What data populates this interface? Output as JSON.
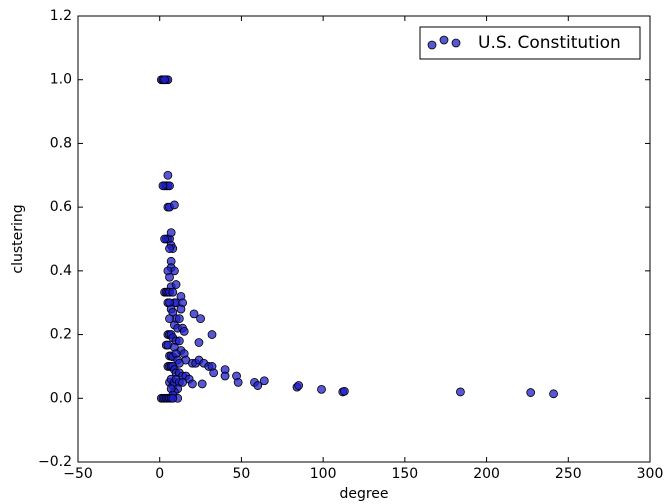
{
  "chart_data": {
    "type": "scatter",
    "xlabel": "degree",
    "ylabel": "clustering",
    "legend": "upper right",
    "series": [
      {
        "name": "U.S. Constitution",
        "color": "#1f1fc8",
        "x": [
          1,
          2,
          3,
          4,
          5,
          2,
          3,
          3,
          4,
          5,
          6,
          2,
          5,
          5,
          6,
          9,
          4,
          5,
          6,
          3,
          7,
          7,
          8,
          6,
          7,
          7,
          9,
          5,
          6,
          7,
          10,
          3,
          4,
          5,
          6,
          8,
          9,
          10,
          13,
          14,
          5,
          6,
          7,
          13,
          8,
          10,
          12,
          6,
          9,
          11,
          14,
          15,
          21,
          25,
          32,
          24,
          5,
          6,
          7,
          8,
          10,
          12,
          4,
          5,
          9,
          13,
          15,
          16,
          6,
          7,
          8,
          10,
          11,
          12,
          20,
          22,
          24,
          27,
          30,
          32,
          5,
          6,
          7,
          8,
          9,
          10,
          12,
          14,
          16,
          18,
          33,
          40,
          40,
          47,
          48,
          58,
          60,
          64,
          84,
          85,
          99,
          112,
          113,
          184,
          227,
          241,
          6,
          7,
          8,
          9,
          10,
          12,
          14,
          20,
          26,
          11,
          9,
          7,
          8,
          11,
          1,
          2,
          3,
          4,
          5,
          6,
          7,
          8
        ],
        "values": [
          1,
          1,
          1,
          1,
          1,
          1,
          1,
          0.667,
          0.667,
          0.667,
          0.667,
          0.667,
          0.7,
          0.6,
          0.6,
          0.607,
          0.5,
          0.5,
          0.5,
          0.5,
          0.52,
          0.48,
          0.47,
          0.47,
          0.43,
          0.41,
          0.4,
          0.4,
          0.38,
          0.35,
          0.357,
          0.333,
          0.333,
          0.333,
          0.333,
          0.333,
          0.3,
          0.3,
          0.32,
          0.3,
          0.3,
          0.3,
          0.28,
          0.28,
          0.27,
          0.25,
          0.25,
          0.25,
          0.23,
          0.22,
          0.22,
          0.21,
          0.265,
          0.25,
          0.2,
          0.175,
          0.2,
          0.2,
          0.2,
          0.19,
          0.18,
          0.18,
          0.167,
          0.167,
          0.16,
          0.15,
          0.14,
          0.12,
          0.133,
          0.133,
          0.13,
          0.14,
          0.12,
          0.11,
          0.11,
          0.11,
          0.12,
          0.11,
          0.1,
          0.1,
          0.1,
          0.1,
          0.1,
          0.1,
          0.09,
          0.08,
          0.08,
          0.07,
          0.07,
          0.06,
          0.08,
          0.09,
          0.07,
          0.07,
          0.05,
          0.05,
          0.04,
          0.055,
          0.035,
          0.04,
          0.028,
          0.02,
          0.022,
          0.02,
          0.018,
          0.014,
          0.05,
          0.06,
          0.04,
          0.05,
          0.06,
          0.05,
          0.05,
          0.045,
          0.045,
          0.03,
          0.02,
          0.03,
          0.01,
          0,
          0,
          0,
          0,
          0,
          0,
          0,
          0,
          0
        ]
      }
    ],
    "xlim": [
      -50,
      300
    ],
    "xticks": [
      {
        "value": -50,
        "label": "−50"
      },
      0,
      50,
      100,
      150,
      200,
      250,
      300
    ],
    "ylim": [
      -0.2,
      1.2
    ],
    "yticks": [
      {
        "value": -0.2,
        "label": "−0.2"
      },
      {
        "value": 0,
        "label": "0.0"
      },
      0.2,
      0.4,
      0.6,
      0.8,
      {
        "value": 1,
        "label": "1.0"
      },
      1.2
    ]
  }
}
